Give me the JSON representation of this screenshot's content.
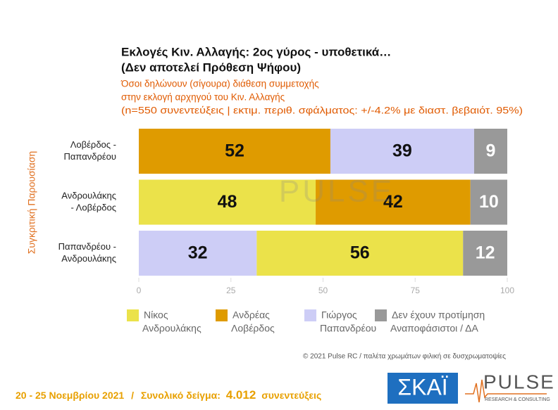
{
  "chart_data": {
    "type": "bar",
    "orientation": "horizontal",
    "stacked": true,
    "title": [
      "Εκλογές Κιν. Αλλαγής: 2ος γύρος - υποθετικά…",
      "(Δεν αποτελεί Πρόθεση Ψήφου)"
    ],
    "subtitle": [
      "Όσοι δηλώνουν (σίγουρα) διάθεση συμμετοχής",
      "στην εκλογή αρχηγού του Κιν. Αλλαγής",
      "(n=550 συνεντεύξεις | εκτιμ. περιθ. σφάλματος: +/-4.2% με διαστ. βεβαιότ. 95%)"
    ],
    "y_label": "Συγκριτική Παρουσίαση",
    "categories": [
      [
        "Λοβέρδος -",
        "Παπανδρέου"
      ],
      [
        "Ανδρουλάκης",
        "- Λοβέρδος"
      ],
      [
        "Παπανδρέου -",
        "Ανδρουλάκης"
      ]
    ],
    "series": [
      {
        "name": [
          "Νίκος",
          "Ανδρουλάκης"
        ],
        "color": "#ebe24a",
        "label_color": "#111111",
        "values": [
          null,
          48,
          56
        ]
      },
      {
        "name": [
          "Ανδρέας",
          "Λοβέρδος"
        ],
        "color": "#df9b00",
        "label_color": "#111111",
        "values": [
          52,
          42,
          null
        ]
      },
      {
        "name": [
          "Γιώργος",
          "Παπανδρέου"
        ],
        "color": "#cdcdf6",
        "label_color": "#111111",
        "values": [
          39,
          null,
          32
        ]
      },
      {
        "name": [
          "Δεν έχουν προτίμηση",
          "Αναποφάσιστοι / ΔΑ"
        ],
        "color": "#999999",
        "label_color": "#ffffff",
        "values": [
          9,
          10,
          12
        ]
      }
    ],
    "stack_order": [
      [
        1,
        2,
        3
      ],
      [
        0,
        1,
        3
      ],
      [
        2,
        0,
        3
      ]
    ],
    "xlim": [
      0,
      100
    ],
    "xticks": [
      0,
      25,
      50,
      75,
      100
    ],
    "legend": "bottom",
    "watermark": "PULSE"
  },
  "footer": {
    "credit": "© 2021 Pulse RC  /  παλέτα χρωμάτων φιλική σε δυσχρωματοψίες",
    "date": "20 - 25  Νοεμβρίου 2021",
    "separator": "/",
    "sample_label": "Συνολικό δείγμα:",
    "sample_value": "4.012",
    "sample_unit": "συνεντεύξεις"
  },
  "logos": {
    "skai": "ΣΚΑΪ",
    "pulse": "PULSE",
    "pulse_sub": "RESEARCH & CONSULTING"
  }
}
